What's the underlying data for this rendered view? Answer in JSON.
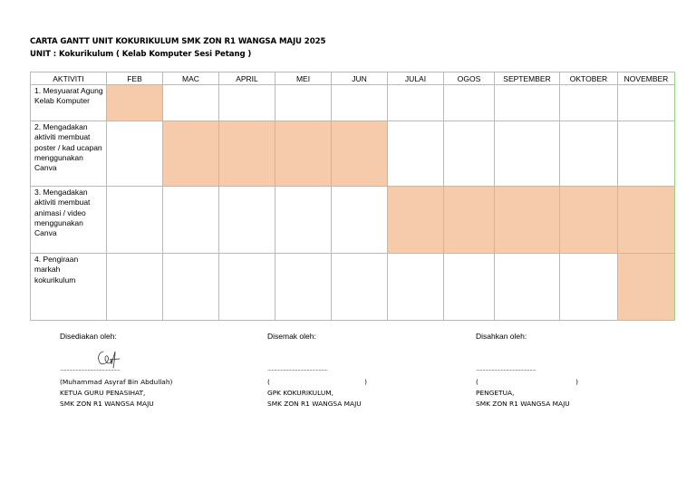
{
  "title": {
    "line1": "CARTA GANTT UNIT KOKURIKULUM SMK ZON R1 WANGSA MAJU 2025",
    "line2": "UNIT : Kokurikulum ( Kelab Komputer Sesi Petang )"
  },
  "table": {
    "activity_header": "AKTIVITI",
    "months": [
      "FEB",
      "MAC",
      "APRIL",
      "MEI",
      "JUN",
      "JULAI",
      "OGOS",
      "SEPTEMBER",
      "OKTOBER",
      "NOVEMBER"
    ],
    "rows": [
      {
        "activity": "1. Mesyuarat Agung Kelab Komputer",
        "filled": [
          1,
          0,
          0,
          0,
          0,
          0,
          0,
          0,
          0,
          0
        ]
      },
      {
        "activity": "2. Mengadakan aktiviti membuat poster / kad ucapan menggunakan Canva",
        "filled": [
          0,
          1,
          1,
          1,
          1,
          0,
          0,
          0,
          0,
          0
        ]
      },
      {
        "activity": "3. Mengadakan aktiviti membuat animasi / video menggunakan Canva",
        "filled": [
          0,
          0,
          0,
          0,
          0,
          1,
          1,
          1,
          1,
          1
        ]
      },
      {
        "activity": "4. Pengiraan markah kokurikulum",
        "filled": [
          0,
          0,
          0,
          0,
          0,
          0,
          0,
          0,
          0,
          1
        ]
      }
    ],
    "fill_color": "#f5cbac",
    "border_color": "#9bd18c"
  },
  "signatures": {
    "prepared": {
      "label": "Disediakan oleh:",
      "dots": "..............................................",
      "name": "(Muhammad Asyraf Bin Abdullah)",
      "title": "KETUA GURU PENASIHAT,",
      "school": "SMK ZON R1 WANGSA MAJU"
    },
    "checked": {
      "label": "Disemak oleh:",
      "dots": "..............................................",
      "paren_open": "(",
      "paren_close": ")",
      "title": "GPK KOKURIKULUM,",
      "school": "SMK ZON R1 WANGSA MAJU"
    },
    "approved": {
      "label": "Disahkan oleh:",
      "dots": "..............................................",
      "paren_open": "(",
      "paren_close": ")",
      "title": "PENGETUA,",
      "school": "SMK ZON R1 WANGSA MAJU"
    }
  }
}
